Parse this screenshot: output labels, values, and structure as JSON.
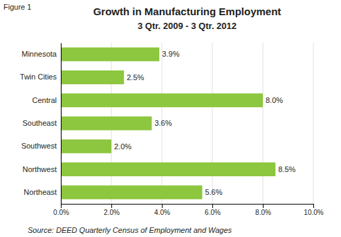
{
  "chart_data": {
    "type": "bar",
    "orientation": "horizontal",
    "title": "Growth in Manufacturing Employment",
    "subtitle": "3 Qtr. 2009 - 3 Qtr. 2012",
    "annotations": [
      "Figure 1",
      "Source: DEED Quarterly Census of Employment and Wages"
    ],
    "categories": [
      "Minnesota",
      "Twin Cities",
      "Central",
      "Southeast",
      "Southwest",
      "Northwest",
      "Northeast"
    ],
    "values": [
      3.9,
      2.5,
      8.0,
      3.6,
      2.0,
      8.5,
      5.6
    ],
    "value_labels": [
      "3.9%",
      "2.5%",
      "8.0%",
      "3.6%",
      "2.0%",
      "8.5%",
      "5.6%"
    ],
    "data_labels": true,
    "color": "#8DC63F",
    "xlim": [
      0,
      10.0
    ],
    "xticks": [
      {
        "value": 0,
        "label": "0.0%"
      },
      {
        "value": 2,
        "label": "2.0%"
      },
      {
        "value": 4,
        "label": "4.0%"
      },
      {
        "value": 6,
        "label": "6.0%"
      },
      {
        "value": 8,
        "label": "8.0%"
      },
      {
        "value": 10,
        "label": "10.0%"
      }
    ],
    "grid": true
  }
}
